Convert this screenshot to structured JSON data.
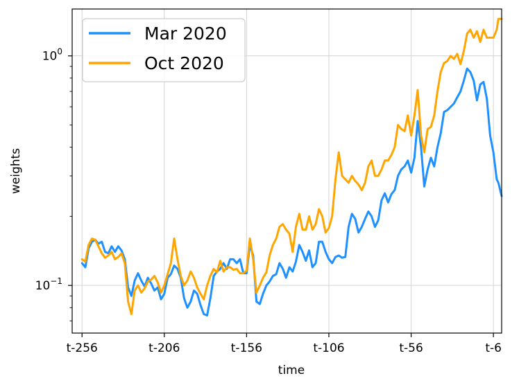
{
  "chart_data": {
    "type": "line",
    "xlabel": "time",
    "ylabel": "weights",
    "yscale": "log",
    "xlim": [
      -262,
      -1
    ],
    "ylim": [
      0.062,
      1.6
    ],
    "grid": true,
    "legend_position": "top-left",
    "x_ticks": [
      {
        "value": -256,
        "label": "t-256"
      },
      {
        "value": -206,
        "label": "t-206"
      },
      {
        "value": -156,
        "label": "t-156"
      },
      {
        "value": -106,
        "label": "t-106"
      },
      {
        "value": -56,
        "label": "t-56"
      },
      {
        "value": -6,
        "label": "t-6"
      }
    ],
    "y_ticks": [
      {
        "value": 0.1,
        "base": "10",
        "exponent": "−1"
      },
      {
        "value": 1,
        "base": "10",
        "exponent": "0"
      }
    ],
    "series": [
      {
        "name": "Mar 2020",
        "color": "#1e90ff",
        "points": [
          [
            -256,
            0.125
          ],
          [
            -254,
            0.12
          ],
          [
            -252,
            0.145
          ],
          [
            -250,
            0.155
          ],
          [
            -248,
            0.158
          ],
          [
            -246,
            0.152
          ],
          [
            -244,
            0.155
          ],
          [
            -242,
            0.14
          ],
          [
            -240,
            0.138
          ],
          [
            -238,
            0.148
          ],
          [
            -236,
            0.14
          ],
          [
            -234,
            0.148
          ],
          [
            -232,
            0.142
          ],
          [
            -230,
            0.13
          ],
          [
            -228,
            0.098
          ],
          [
            -226,
            0.09
          ],
          [
            -224,
            0.105
          ],
          [
            -222,
            0.113
          ],
          [
            -220,
            0.105
          ],
          [
            -218,
            0.099
          ],
          [
            -216,
            0.108
          ],
          [
            -214,
            0.102
          ],
          [
            -212,
            0.095
          ],
          [
            -210,
            0.098
          ],
          [
            -208,
            0.087
          ],
          [
            -206,
            0.092
          ],
          [
            -204,
            0.108
          ],
          [
            -202,
            0.112
          ],
          [
            -200,
            0.122
          ],
          [
            -198,
            0.118
          ],
          [
            -196,
            0.108
          ],
          [
            -194,
            0.088
          ],
          [
            -192,
            0.08
          ],
          [
            -190,
            0.085
          ],
          [
            -188,
            0.095
          ],
          [
            -186,
            0.092
          ],
          [
            -184,
            0.082
          ],
          [
            -182,
            0.075
          ],
          [
            -180,
            0.074
          ],
          [
            -178,
            0.088
          ],
          [
            -176,
            0.11
          ],
          [
            -174,
            0.115
          ],
          [
            -172,
            0.118
          ],
          [
            -170,
            0.125
          ],
          [
            -168,
            0.118
          ],
          [
            -166,
            0.13
          ],
          [
            -164,
            0.13
          ],
          [
            -162,
            0.125
          ],
          [
            -160,
            0.13
          ],
          [
            -158,
            0.113
          ],
          [
            -156,
            0.113
          ],
          [
            -154,
            0.15
          ],
          [
            -152,
            0.135
          ],
          [
            -150,
            0.085
          ],
          [
            -148,
            0.083
          ],
          [
            -146,
            0.092
          ],
          [
            -144,
            0.1
          ],
          [
            -142,
            0.104
          ],
          [
            -140,
            0.11
          ],
          [
            -138,
            0.112
          ],
          [
            -136,
            0.125
          ],
          [
            -134,
            0.118
          ],
          [
            -132,
            0.108
          ],
          [
            -130,
            0.12
          ],
          [
            -128,
            0.115
          ],
          [
            -126,
            0.127
          ],
          [
            -124,
            0.15
          ],
          [
            -122,
            0.14
          ],
          [
            -120,
            0.128
          ],
          [
            -118,
            0.142
          ],
          [
            -116,
            0.12
          ],
          [
            -114,
            0.125
          ],
          [
            -112,
            0.155
          ],
          [
            -110,
            0.155
          ],
          [
            -108,
            0.14
          ],
          [
            -106,
            0.13
          ],
          [
            -104,
            0.125
          ],
          [
            -102,
            0.133
          ],
          [
            -100,
            0.135
          ],
          [
            -98,
            0.132
          ],
          [
            -96,
            0.133
          ],
          [
            -94,
            0.18
          ],
          [
            -92,
            0.205
          ],
          [
            -90,
            0.195
          ],
          [
            -88,
            0.17
          ],
          [
            -86,
            0.18
          ],
          [
            -84,
            0.195
          ],
          [
            -82,
            0.21
          ],
          [
            -80,
            0.2
          ],
          [
            -78,
            0.18
          ],
          [
            -76,
            0.192
          ],
          [
            -74,
            0.235
          ],
          [
            -72,
            0.252
          ],
          [
            -70,
            0.23
          ],
          [
            -68,
            0.25
          ],
          [
            -66,
            0.26
          ],
          [
            -64,
            0.3
          ],
          [
            -62,
            0.32
          ],
          [
            -60,
            0.33
          ],
          [
            -58,
            0.35
          ],
          [
            -56,
            0.31
          ],
          [
            -54,
            0.36
          ],
          [
            -52,
            0.52
          ],
          [
            -50,
            0.4
          ],
          [
            -48,
            0.27
          ],
          [
            -46,
            0.32
          ],
          [
            -44,
            0.36
          ],
          [
            -42,
            0.33
          ],
          [
            -40,
            0.4
          ],
          [
            -38,
            0.46
          ],
          [
            -36,
            0.57
          ],
          [
            -34,
            0.58
          ],
          [
            -32,
            0.6
          ],
          [
            -30,
            0.62
          ],
          [
            -28,
            0.66
          ],
          [
            -26,
            0.7
          ],
          [
            -24,
            0.78
          ],
          [
            -22,
            0.88
          ],
          [
            -20,
            0.85
          ],
          [
            -18,
            0.78
          ],
          [
            -16,
            0.64
          ],
          [
            -14,
            0.75
          ],
          [
            -12,
            0.77
          ],
          [
            -10,
            0.65
          ],
          [
            -8,
            0.45
          ],
          [
            -6,
            0.38
          ],
          [
            -4,
            0.29
          ],
          [
            -3,
            0.28
          ],
          [
            -1,
            0.245
          ]
        ]
      },
      {
        "name": "Oct 2020",
        "color": "#ffa500",
        "points": [
          [
            -256,
            0.13
          ],
          [
            -254,
            0.127
          ],
          [
            -252,
            0.15
          ],
          [
            -250,
            0.16
          ],
          [
            -248,
            0.158
          ],
          [
            -246,
            0.148
          ],
          [
            -244,
            0.138
          ],
          [
            -242,
            0.132
          ],
          [
            -240,
            0.135
          ],
          [
            -238,
            0.14
          ],
          [
            -236,
            0.13
          ],
          [
            -234,
            0.133
          ],
          [
            -232,
            0.138
          ],
          [
            -230,
            0.125
          ],
          [
            -228,
            0.085
          ],
          [
            -226,
            0.075
          ],
          [
            -224,
            0.095
          ],
          [
            -222,
            0.1
          ],
          [
            -220,
            0.093
          ],
          [
            -218,
            0.097
          ],
          [
            -216,
            0.104
          ],
          [
            -214,
            0.106
          ],
          [
            -212,
            0.11
          ],
          [
            -210,
            0.103
          ],
          [
            -208,
            0.093
          ],
          [
            -206,
            0.1
          ],
          [
            -204,
            0.112
          ],
          [
            -202,
            0.125
          ],
          [
            -200,
            0.16
          ],
          [
            -198,
            0.13
          ],
          [
            -196,
            0.11
          ],
          [
            -194,
            0.1
          ],
          [
            -192,
            0.105
          ],
          [
            -190,
            0.115
          ],
          [
            -188,
            0.108
          ],
          [
            -186,
            0.098
          ],
          [
            -184,
            0.092
          ],
          [
            -182,
            0.087
          ],
          [
            -180,
            0.1
          ],
          [
            -178,
            0.11
          ],
          [
            -176,
            0.118
          ],
          [
            -174,
            0.114
          ],
          [
            -172,
            0.128
          ],
          [
            -170,
            0.115
          ],
          [
            -168,
            0.12
          ],
          [
            -166,
            0.12
          ],
          [
            -164,
            0.117
          ],
          [
            -162,
            0.118
          ],
          [
            -160,
            0.113
          ],
          [
            -158,
            0.113
          ],
          [
            -156,
            0.116
          ],
          [
            -154,
            0.16
          ],
          [
            -152,
            0.13
          ],
          [
            -150,
            0.093
          ],
          [
            -148,
            0.1
          ],
          [
            -146,
            0.108
          ],
          [
            -144,
            0.114
          ],
          [
            -142,
            0.135
          ],
          [
            -140,
            0.15
          ],
          [
            -138,
            0.16
          ],
          [
            -136,
            0.18
          ],
          [
            -134,
            0.185
          ],
          [
            -132,
            0.175
          ],
          [
            -130,
            0.168
          ],
          [
            -128,
            0.14
          ],
          [
            -126,
            0.18
          ],
          [
            -124,
            0.205
          ],
          [
            -122,
            0.175
          ],
          [
            -120,
            0.175
          ],
          [
            -118,
            0.2
          ],
          [
            -116,
            0.175
          ],
          [
            -114,
            0.185
          ],
          [
            -112,
            0.215
          ],
          [
            -110,
            0.2
          ],
          [
            -108,
            0.17
          ],
          [
            -106,
            0.178
          ],
          [
            -104,
            0.2
          ],
          [
            -102,
            0.29
          ],
          [
            -100,
            0.38
          ],
          [
            -98,
            0.3
          ],
          [
            -96,
            0.29
          ],
          [
            -94,
            0.28
          ],
          [
            -92,
            0.3
          ],
          [
            -90,
            0.285
          ],
          [
            -88,
            0.275
          ],
          [
            -86,
            0.26
          ],
          [
            -84,
            0.28
          ],
          [
            -82,
            0.33
          ],
          [
            -80,
            0.35
          ],
          [
            -78,
            0.3
          ],
          [
            -76,
            0.3
          ],
          [
            -74,
            0.32
          ],
          [
            -72,
            0.35
          ],
          [
            -70,
            0.35
          ],
          [
            -68,
            0.37
          ],
          [
            -66,
            0.4
          ],
          [
            -64,
            0.5
          ],
          [
            -62,
            0.48
          ],
          [
            -60,
            0.47
          ],
          [
            -58,
            0.55
          ],
          [
            -56,
            0.45
          ],
          [
            -54,
            0.55
          ],
          [
            -52,
            0.71
          ],
          [
            -50,
            0.45
          ],
          [
            -48,
            0.38
          ],
          [
            -46,
            0.48
          ],
          [
            -44,
            0.49
          ],
          [
            -42,
            0.55
          ],
          [
            -40,
            0.7
          ],
          [
            -38,
            0.85
          ],
          [
            -36,
            0.93
          ],
          [
            -34,
            0.95
          ],
          [
            -32,
            1.0
          ],
          [
            -30,
            0.97
          ],
          [
            -28,
            1.02
          ],
          [
            -26,
            0.92
          ],
          [
            -24,
            1.05
          ],
          [
            -22,
            1.25
          ],
          [
            -20,
            1.3
          ],
          [
            -18,
            1.2
          ],
          [
            -16,
            1.28
          ],
          [
            -14,
            1.15
          ],
          [
            -12,
            1.3
          ],
          [
            -10,
            1.2
          ],
          [
            -8,
            1.2
          ],
          [
            -6,
            1.2
          ],
          [
            -4,
            1.3
          ],
          [
            -3,
            1.45
          ],
          [
            -1,
            1.45
          ]
        ]
      }
    ]
  }
}
